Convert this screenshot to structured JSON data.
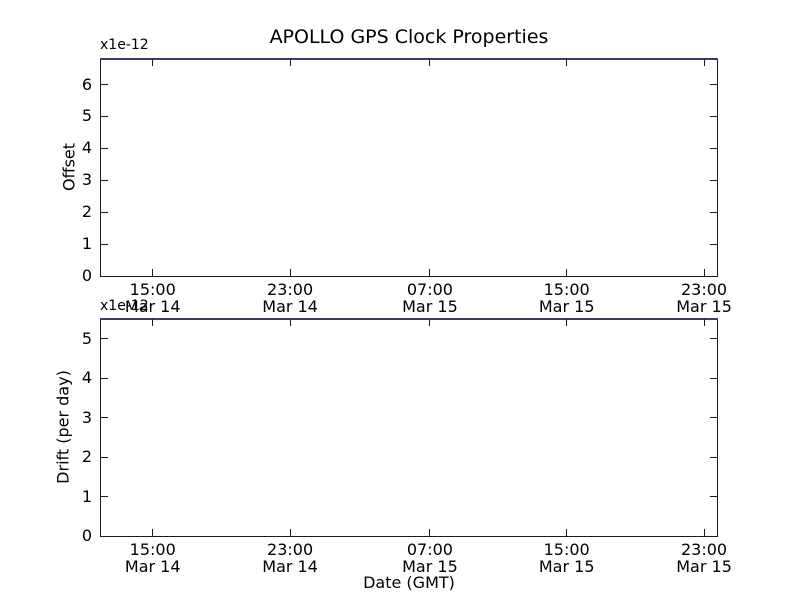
{
  "figure": {
    "background": "#ffffff",
    "spine_color": "#1a1a1a",
    "text_color": "#000000"
  },
  "chart_data": [
    {
      "type": "line",
      "title": "APOLLO GPS Clock Properties",
      "ylabel": "Offset",
      "y_offset_text": "x1e-12",
      "yticks": [
        0,
        1,
        2,
        3,
        4,
        5,
        6
      ],
      "ylim": [
        0,
        6.8
      ],
      "xticks": [
        {
          "time": "15:00",
          "date": "Mar 14",
          "frac": 0.084
        },
        {
          "time": "23:00",
          "date": "Mar 14",
          "frac": 0.307
        },
        {
          "time": "07:00",
          "date": "Mar 15",
          "frac": 0.534
        },
        {
          "time": "15:00",
          "date": "Mar 15",
          "frac": 0.756
        },
        {
          "time": "23:00",
          "date": "Mar 15",
          "frac": 0.979
        }
      ],
      "xlabel": "",
      "series": [],
      "grid": false,
      "legend_visible": false,
      "tick_direction": "in",
      "ticks_on_all_sides": true,
      "top_edge_line_color": "#383d66",
      "notes": "Plot area contains no visible data points; a blue line lies clipped along the top spine."
    },
    {
      "type": "line",
      "title": "",
      "ylabel": "Drift (per day)",
      "y_offset_text": "x1e-12",
      "yticks": [
        0,
        1,
        2,
        3,
        4,
        5
      ],
      "ylim": [
        0,
        5.5
      ],
      "xticks": [
        {
          "time": "15:00",
          "date": "Mar 14",
          "frac": 0.084
        },
        {
          "time": "23:00",
          "date": "Mar 14",
          "frac": 0.307
        },
        {
          "time": "07:00",
          "date": "Mar 15",
          "frac": 0.534
        },
        {
          "time": "15:00",
          "date": "Mar 15",
          "frac": 0.756
        },
        {
          "time": "23:00",
          "date": "Mar 15",
          "frac": 0.979
        }
      ],
      "xlabel": "Date (GMT)",
      "series": [],
      "grid": false,
      "legend_visible": false,
      "tick_direction": "in",
      "ticks_on_all_sides": true,
      "top_edge_line_color": "#383d66",
      "notes": "Plot area contains no visible data points; a blue line lies clipped along the top spine."
    }
  ]
}
